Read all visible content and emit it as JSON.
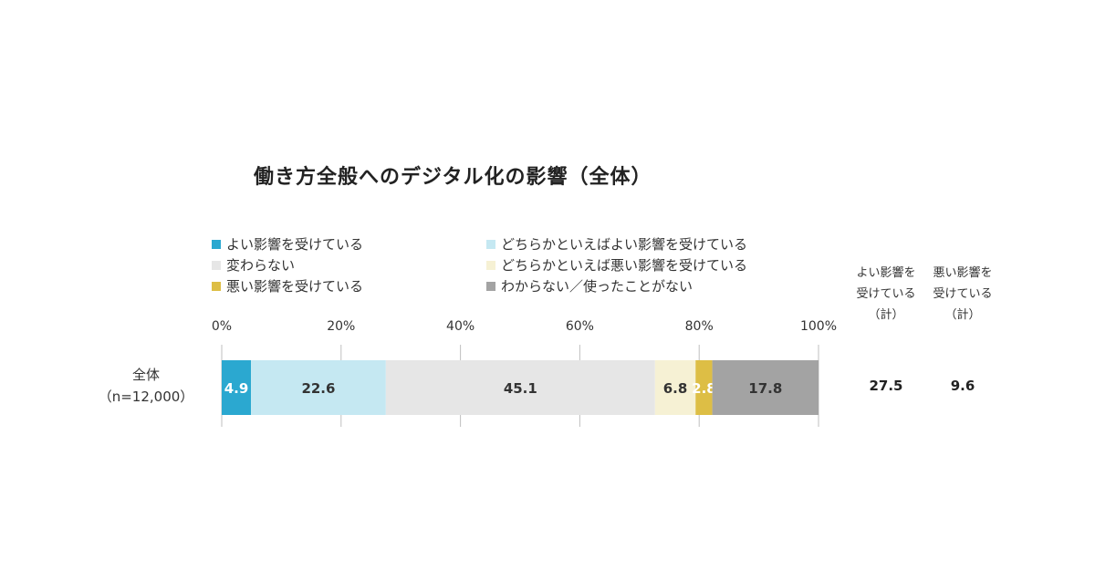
{
  "chart_data": {
    "type": "bar",
    "orientation": "horizontal-stacked-100",
    "title": "働き方全般へのデジタル化の影響（全体）",
    "xlim": [
      0,
      100
    ],
    "xticks": [
      "0%",
      "20%",
      "40%",
      "60%",
      "80%",
      "100%"
    ],
    "xtick_values": [
      0,
      20,
      40,
      60,
      80,
      100
    ],
    "grid": true,
    "legend_position": "top",
    "categories": [
      "全体"
    ],
    "category_sublabels": [
      "（n=12,000）"
    ],
    "series": [
      {
        "name": "よい影響を受けている",
        "values": [
          4.9
        ],
        "color": "#2BA8D0",
        "label_color": "#ffffff"
      },
      {
        "name": "どちらかといえばよい影響を受けている",
        "values": [
          22.6
        ],
        "color": "#C5E8F2",
        "label_color": "#333333"
      },
      {
        "name": "変わらない",
        "values": [
          45.1
        ],
        "color": "#E6E6E6",
        "label_color": "#333333"
      },
      {
        "name": "どちらかといえば悪い影響を受けている",
        "values": [
          6.8
        ],
        "color": "#F6F1D4",
        "label_color": "#333333"
      },
      {
        "name": "悪い影響を受けている",
        "values": [
          2.8
        ],
        "color": "#DDBE45",
        "label_color": "#ffffff"
      },
      {
        "name": "わからない／使ったことがない",
        "values": [
          17.8
        ],
        "color": "#A3A3A3",
        "label_color": "#333333"
      }
    ],
    "summary_columns": [
      {
        "header": [
          "よい影響を",
          "受けている",
          "（計）"
        ],
        "values": [
          "27.5"
        ]
      },
      {
        "header": [
          "悪い影響を",
          "受けている",
          "（計）"
        ],
        "values": [
          "9.6"
        ]
      }
    ]
  }
}
